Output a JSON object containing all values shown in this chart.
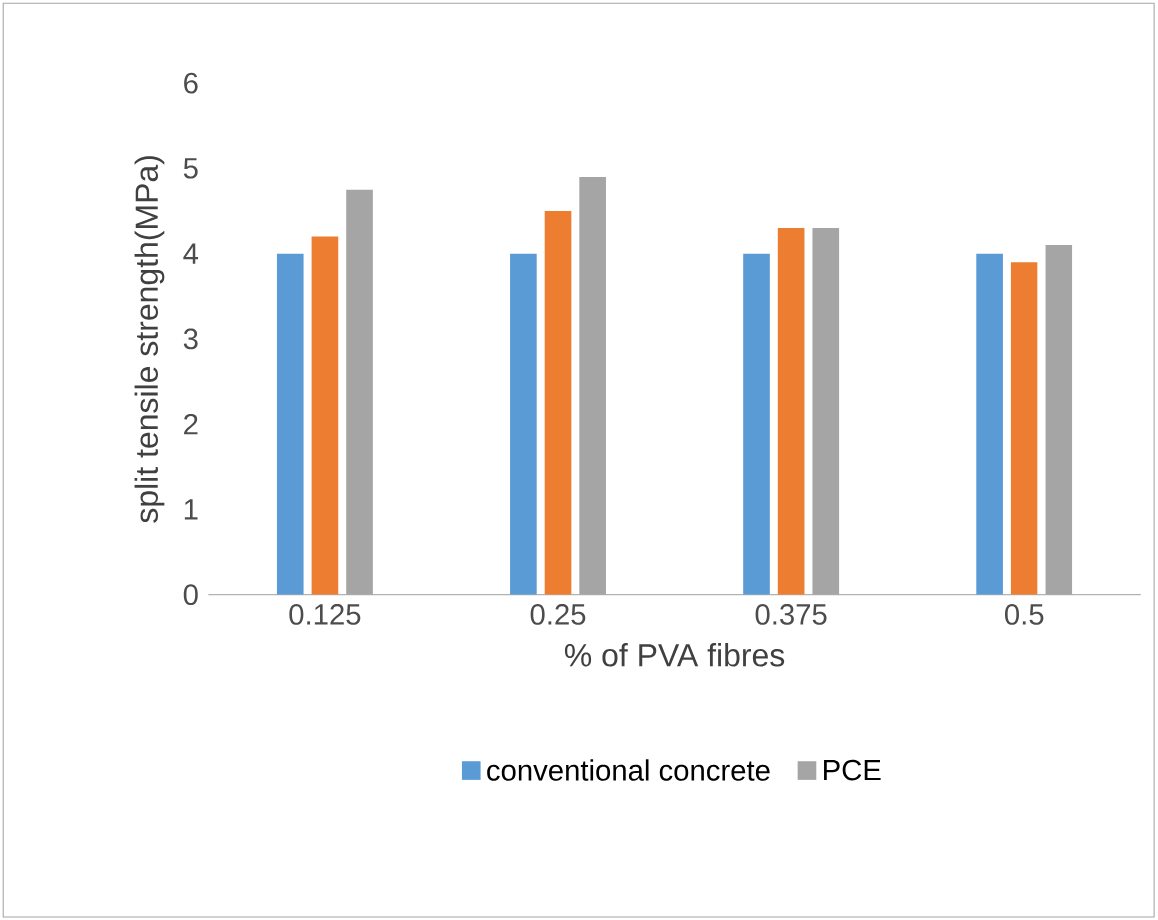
{
  "chart_data": {
    "type": "bar",
    "xlabel": "% of PVA  fibres",
    "ylabel": "split tensile strength(MPa)",
    "categories": [
      "0.125",
      "0.25",
      "0.375",
      "0.5"
    ],
    "series": [
      {
        "name": "conventional concrete",
        "color": "#5b9bd5",
        "values": [
          4.0,
          4.0,
          4.0,
          4.0
        ]
      },
      {
        "color": "#ed7d31",
        "values": [
          4.2,
          4.5,
          4.3,
          3.9
        ]
      },
      {
        "name": "PCE",
        "color": "#a5a5a5",
        "values": [
          4.75,
          4.9,
          4.3,
          4.1
        ]
      }
    ],
    "ylim": [
      0,
      6
    ],
    "yticks": [
      0,
      1,
      2,
      3,
      4,
      5,
      6
    ],
    "legend": "bottom"
  }
}
